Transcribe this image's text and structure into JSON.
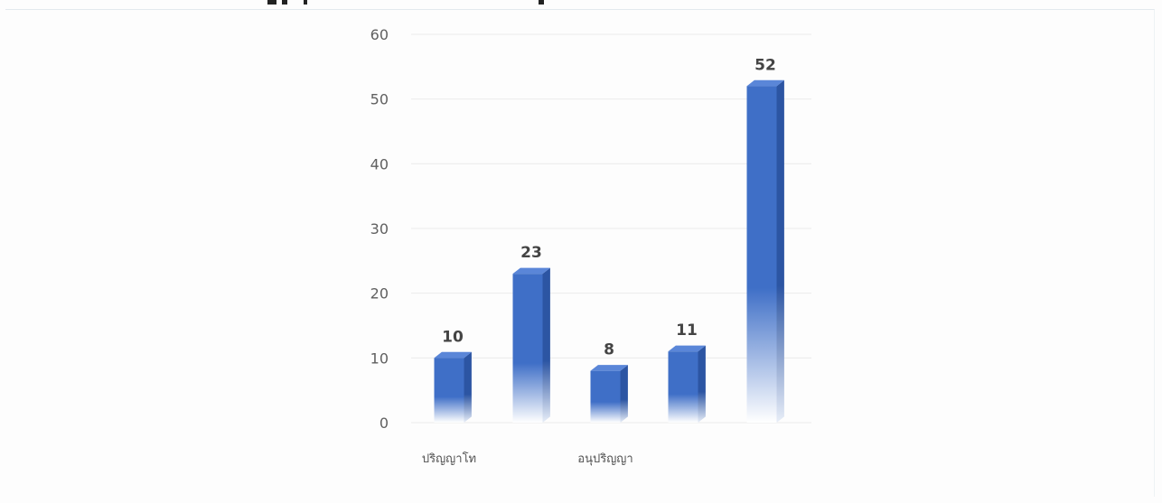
{
  "chart_data": {
    "type": "bar",
    "title": "",
    "xlabel": "",
    "ylabel": "",
    "ylim": [
      0,
      60
    ],
    "yticks": [
      0,
      10,
      20,
      30,
      40,
      50,
      60
    ],
    "grid": true,
    "style": "3d-column-gradient",
    "categories": [
      "ปริญญาโท",
      "",
      "อนุปริญญา",
      "",
      ""
    ],
    "values": [
      10,
      23,
      8,
      11,
      52
    ],
    "data_labels": [
      "10",
      "23",
      "8",
      "11",
      "52"
    ]
  },
  "colors": {
    "bar_top": "#3f6fc7",
    "bar_bottom": "#ffffff",
    "bar_side": "#2c55a3",
    "bar_cap": "#5a86d8",
    "grid": "#ececec",
    "axis_text": "#606060"
  }
}
